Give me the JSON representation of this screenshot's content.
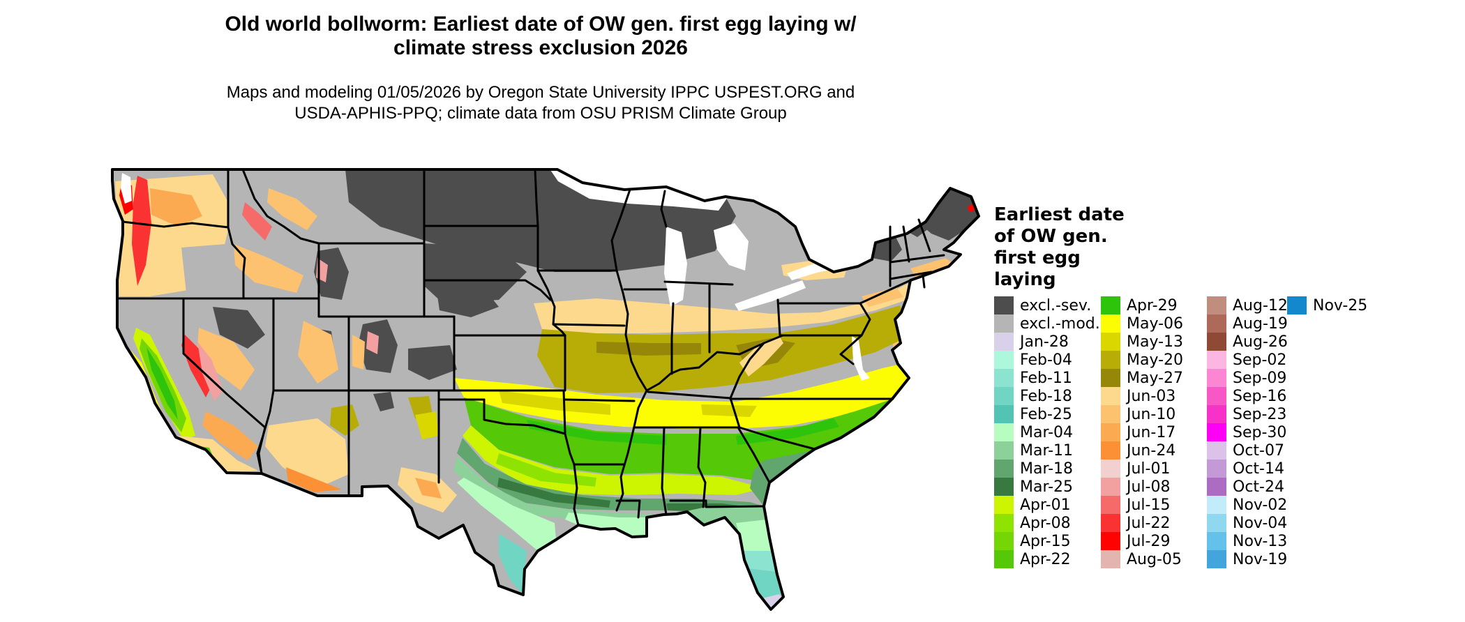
{
  "title": {
    "line1": "Old world bollworm: Earliest date of OW gen. first egg laying w/",
    "line2": "climate stress exclusion 2026"
  },
  "subtitle": {
    "line1": "Maps and modeling 01/05/2026 by Oregon State University IPPC USPEST.ORG and",
    "line2": "USDA-APHIS-PPQ; climate data from OSU PRISM Climate Group"
  },
  "legend": {
    "title_lines": [
      "Earliest date",
      "of OW gen.",
      "first egg",
      "laying"
    ],
    "columns": [
      [
        {
          "label": "excl.-sev.",
          "color": "excl_sev"
        },
        {
          "label": "excl.-mod.",
          "color": "excl_mod"
        },
        {
          "label": "Jan-28",
          "color": "jan28"
        },
        {
          "label": "Feb-04",
          "color": "feb04"
        },
        {
          "label": "Feb-11",
          "color": "feb11"
        },
        {
          "label": "Feb-18",
          "color": "feb18"
        },
        {
          "label": "Feb-25",
          "color": "feb25"
        },
        {
          "label": "Mar-04",
          "color": "mar04"
        },
        {
          "label": "Mar-11",
          "color": "mar11"
        },
        {
          "label": "Mar-18",
          "color": "mar18"
        },
        {
          "label": "Mar-25",
          "color": "mar25"
        },
        {
          "label": "Apr-01",
          "color": "apr01"
        },
        {
          "label": "Apr-08",
          "color": "apr08"
        },
        {
          "label": "Apr-15",
          "color": "apr15"
        },
        {
          "label": "Apr-22",
          "color": "apr22"
        }
      ],
      [
        {
          "label": "Apr-29",
          "color": "apr29"
        },
        {
          "label": "May-06",
          "color": "may06"
        },
        {
          "label": "May-13",
          "color": "may13"
        },
        {
          "label": "May-20",
          "color": "may20"
        },
        {
          "label": "May-27",
          "color": "may27"
        },
        {
          "label": "Jun-03",
          "color": "jun03"
        },
        {
          "label": "Jun-10",
          "color": "jun10"
        },
        {
          "label": "Jun-17",
          "color": "jun17"
        },
        {
          "label": "Jun-24",
          "color": "jun24"
        },
        {
          "label": "Jul-01",
          "color": "jul01"
        },
        {
          "label": "Jul-08",
          "color": "jul08"
        },
        {
          "label": "Jul-15",
          "color": "jul15"
        },
        {
          "label": "Jul-22",
          "color": "jul22"
        },
        {
          "label": "Jul-29",
          "color": "jul29"
        },
        {
          "label": "Aug-05",
          "color": "aug05"
        }
      ],
      [
        {
          "label": "Aug-12",
          "color": "aug12"
        },
        {
          "label": "Aug-19",
          "color": "aug19"
        },
        {
          "label": "Aug-26",
          "color": "aug26"
        },
        {
          "label": "Sep-02",
          "color": "sep02"
        },
        {
          "label": "Sep-09",
          "color": "sep09"
        },
        {
          "label": "Sep-16",
          "color": "sep16"
        },
        {
          "label": "Sep-23",
          "color": "sep23"
        },
        {
          "label": "Sep-30",
          "color": "sep30"
        },
        {
          "label": "Oct-07",
          "color": "oct07"
        },
        {
          "label": "Oct-14",
          "color": "oct14"
        },
        {
          "label": "Oct-24",
          "color": "oct24"
        },
        {
          "label": "Nov-02",
          "color": "nov02"
        },
        {
          "label": "Nov-04",
          "color": "nov04"
        },
        {
          "label": "Nov-13",
          "color": "nov13"
        },
        {
          "label": "Nov-19",
          "color": "nov19"
        }
      ],
      [
        {
          "label": "Nov-25",
          "color": "nov25"
        }
      ]
    ]
  },
  "colors": {
    "excl_sev": "#4d4d4d",
    "excl_mod": "#b5b5b5",
    "jan28": "#d9d0e9",
    "feb04": "#adf7dc",
    "feb11": "#8ce3cf",
    "feb18": "#70d5c3",
    "feb25": "#53c3b4",
    "mar04": "#b7fdc0",
    "mar11": "#8cd199",
    "mar18": "#61a56f",
    "mar25": "#38793f",
    "apr01": "#cdf502",
    "apr08": "#8fe303",
    "apr15": "#74d705",
    "apr22": "#55c808",
    "apr29": "#2ec40c",
    "may06": "#fcfc02",
    "may13": "#dad600",
    "may20": "#b8ad06",
    "may27": "#968708",
    "jun03": "#fdd98e",
    "jun10": "#fdc270",
    "jun17": "#fbaa52",
    "jun24": "#fb9134",
    "jul01": "#f2d0d0",
    "jul08": "#f2a0a0",
    "jul15": "#f76a6a",
    "jul22": "#fb3232",
    "jul29": "#fe0202",
    "aug05": "#e2b6ae",
    "aug12": "#c08d7e",
    "aug19": "#ad6a58",
    "aug26": "#8e4a34",
    "sep02": "#fcb6e2",
    "sep09": "#fa86d4",
    "sep16": "#f857c6",
    "sep23": "#f632c8",
    "sep30": "#fb00f3",
    "oct07": "#dcc2e8",
    "oct14": "#c49ad6",
    "oct24": "#ab6cc2",
    "nov02": "#c2ecfa",
    "nov04": "#90d8f0",
    "nov13": "#64c2ea",
    "nov19": "#42a6dc",
    "nov25": "#1488cc"
  },
  "map_summary": {
    "type": "choropleth-raster",
    "area": "Contiguous United States with state boundaries",
    "regions": [
      {
        "area": "Northern plains and upper Midwest (MT, ND, MN, WI, upper MI), Maine, Adirondacks",
        "value": "excl.-sev."
      },
      {
        "area": "Central plains, Great Basin, interior Northeast, Iowa/Nebraska",
        "value": "excl.-mod."
      },
      {
        "area": "Ohio Valley through Mid-Atlantic and southern New England coast",
        "value": "Jun-03 to Jun-24"
      },
      {
        "area": "Missouri, Kentucky, West Virginia, Virginia band",
        "value": "May-20 to May-27"
      },
      {
        "area": "Tennessee, North Carolina, southern Kansas, northern Oklahoma/Arkansas",
        "value": "May-06 to May-13"
      },
      {
        "area": "Southern Oklahoma, Arkansas, north Texas, Georgia/Carolinas piedmont",
        "value": "Apr-15 to Apr-29"
      },
      {
        "area": "Central Texas and mid Gulf states",
        "value": "Apr-01 to Apr-08"
      },
      {
        "area": "Gulf coastal plain",
        "value": "Mar-04 to Mar-25"
      },
      {
        "area": "South Texas and central Florida",
        "value": "Feb-04 to Feb-25"
      },
      {
        "area": "Southern Florida tip and Keys",
        "value": "Jan-28"
      },
      {
        "area": "Pacific Northwest coast, Cascades, Sierra Nevada",
        "value": "Jul-01 to Jul-29"
      },
      {
        "area": "California Central Valley and south coast valleys",
        "value": "Apr-01 to Apr-29"
      },
      {
        "area": "Columbia/Snake basins, Nevada/Utah/Arizona valleys",
        "value": "Jun-03 to Jun-24"
      }
    ]
  }
}
